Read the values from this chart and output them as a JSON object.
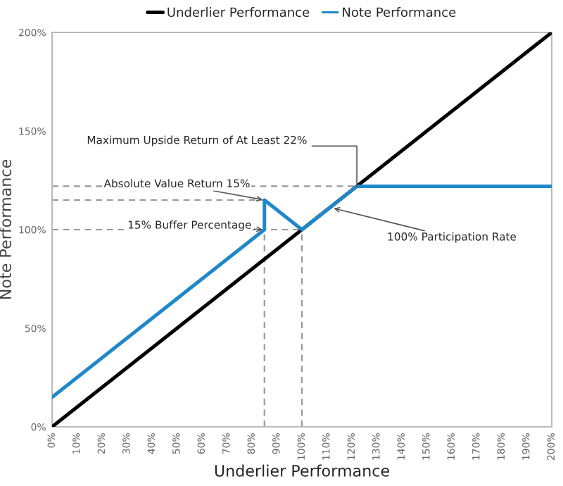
{
  "chart_data": {
    "type": "line",
    "xlabel": "Underlier Performance",
    "ylabel": "Note Performance",
    "series": [
      {
        "name": "Underlier Performance",
        "color": "#000000",
        "x": [
          0,
          200
        ],
        "values": [
          0,
          200
        ]
      },
      {
        "name": "Note Performance",
        "color": "#1f88c9",
        "x": [
          0,
          85,
          85,
          100,
          122,
          200
        ],
        "values": [
          15,
          100,
          115,
          100,
          122,
          122
        ]
      },
      {
        "color": "#999999",
        "line_style": "dashed",
        "x": [
          0,
          122
        ],
        "values": [
          122,
          122
        ]
      },
      {
        "color": "#999999",
        "line_style": "dashed",
        "x": [
          0,
          85
        ],
        "values": [
          115,
          115
        ]
      },
      {
        "color": "#999999",
        "line_style": "dashed",
        "x": [
          0,
          100
        ],
        "values": [
          100,
          100
        ]
      },
      {
        "color": "#999999",
        "line_style": "dashed",
        "x": [
          85,
          85
        ],
        "values": [
          0,
          100
        ]
      },
      {
        "color": "#999999",
        "line_style": "dashed",
        "x": [
          100,
          100
        ],
        "values": [
          0,
          100
        ]
      }
    ],
    "annotations": [
      {
        "text": "Maximum Upside Return of At Least 22%",
        "x": 122,
        "y": 122
      },
      {
        "text": "Absolute Value Return 15%",
        "x": 85,
        "y": 115
      },
      {
        "text": "15% Buffer Percentage",
        "x": 85,
        "y": 100
      },
      {
        "text": "100% Participation Rate",
        "x": 112,
        "y": 111
      }
    ],
    "xlim": [
      0,
      200
    ],
    "ylim": [
      0,
      200
    ],
    "xticks": [
      {
        "value": 0,
        "label": "0%"
      },
      {
        "value": 10,
        "label": "10%"
      },
      {
        "value": 20,
        "label": "20%"
      },
      {
        "value": 30,
        "label": "30%"
      },
      {
        "value": 40,
        "label": "40%"
      },
      {
        "value": 50,
        "label": "50%"
      },
      {
        "value": 60,
        "label": "60%"
      },
      {
        "value": 70,
        "label": "70%"
      },
      {
        "value": 80,
        "label": "80%"
      },
      {
        "value": 90,
        "label": "90%"
      },
      {
        "value": 100,
        "label": "100%"
      },
      {
        "value": 110,
        "label": "110%"
      },
      {
        "value": 120,
        "label": "120%"
      },
      {
        "value": 130,
        "label": "130%"
      },
      {
        "value": 140,
        "label": "140%"
      },
      {
        "value": 150,
        "label": "150%"
      },
      {
        "value": 160,
        "label": "160%"
      },
      {
        "value": 170,
        "label": "170%"
      },
      {
        "value": 180,
        "label": "180%"
      },
      {
        "value": 190,
        "label": "190%"
      },
      {
        "value": 200,
        "label": "200%"
      }
    ],
    "yticks": [
      {
        "value": 0,
        "label": "0%"
      },
      {
        "value": 50,
        "label": "50%"
      },
      {
        "value": 100,
        "label": "100%"
      },
      {
        "value": 150,
        "label": "150%"
      },
      {
        "value": 200,
        "label": "200%"
      }
    ],
    "grid": false,
    "legend": "top",
    "marker": "none"
  }
}
